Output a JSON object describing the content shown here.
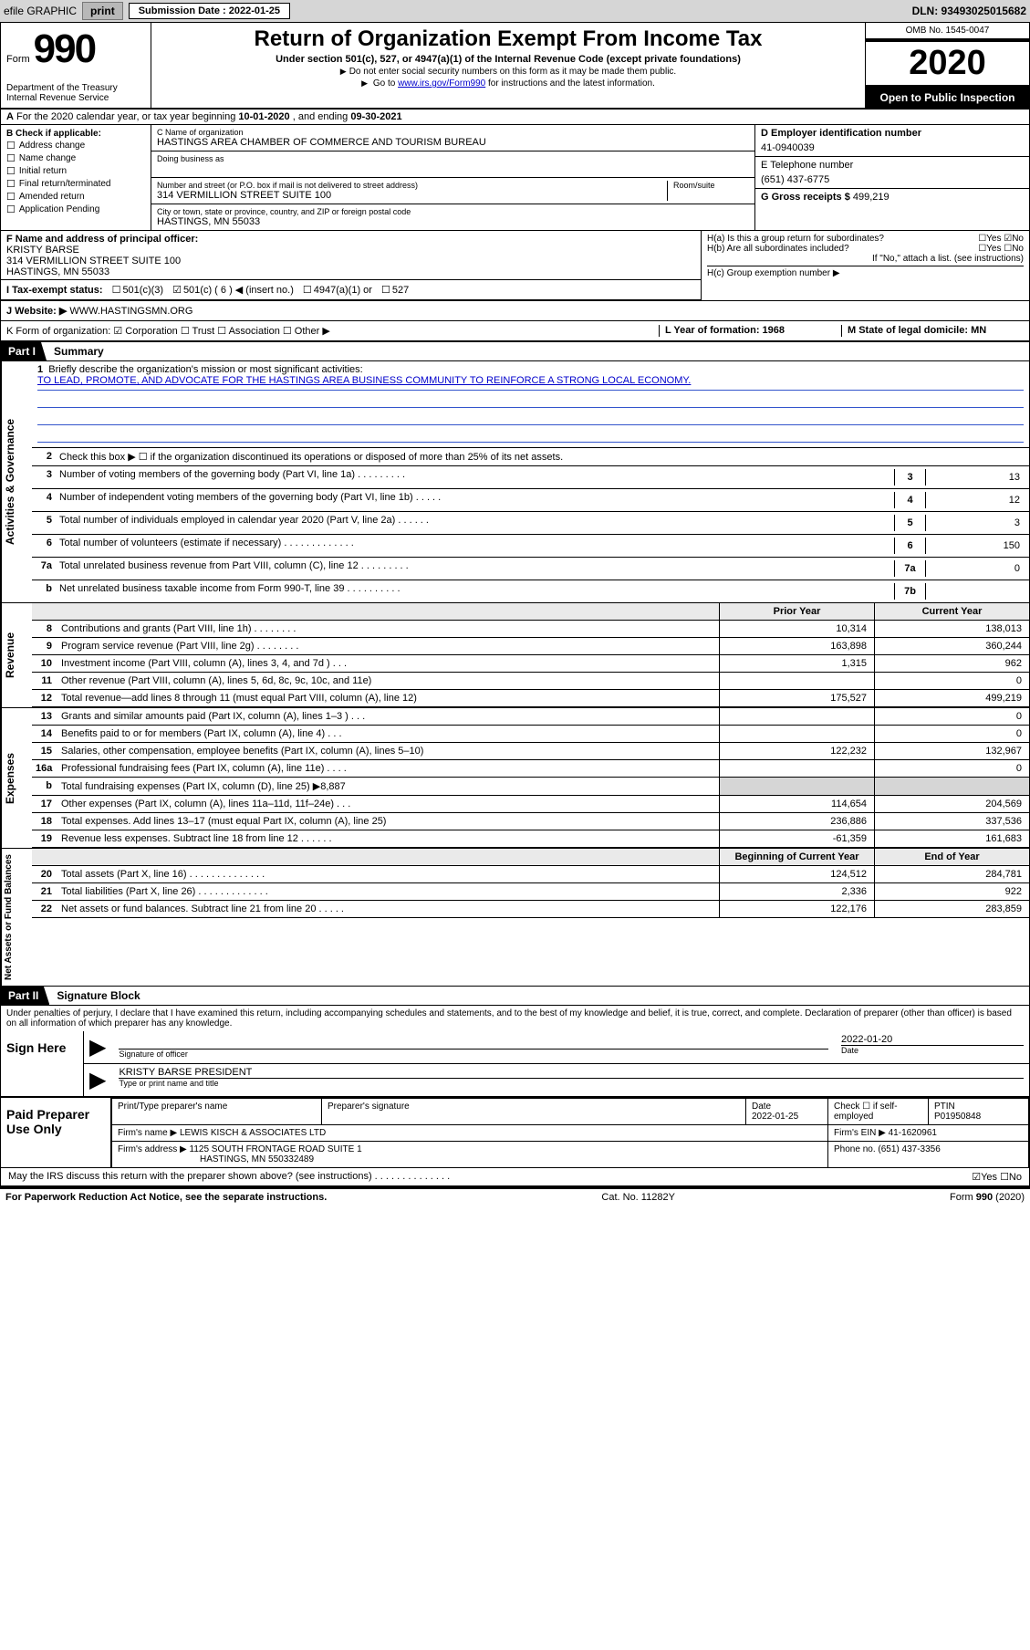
{
  "topbar": {
    "efile_text": "efile GRAPHIC",
    "print_btn": "print",
    "sub_label": "Submission Date : 2022-01-25",
    "dln": "DLN: 93493025015682"
  },
  "header": {
    "form_word": "Form",
    "form_num": "990",
    "dept": "Department of the Treasury\nInternal Revenue Service",
    "title": "Return of Organization Exempt From Income Tax",
    "subtitle": "Under section 501(c), 527, or 4947(a)(1) of the Internal Revenue Code (except private foundations)",
    "note1": "Do not enter social security numbers on this form as it may be made them public.",
    "note2_pre": "Go to ",
    "note2_link": "www.irs.gov/Form990",
    "note2_post": " for instructions and the latest information.",
    "omb": "OMB No. 1545-0047",
    "year": "2020",
    "open": "Open to Public Inspection"
  },
  "row_a": {
    "label": "A",
    "text": "For the 2020 calendar year, or tax year beginning ",
    "begin": "10-01-2020",
    "mid": " , and ending ",
    "end": "09-30-2021"
  },
  "col_b": {
    "label": "B Check if applicable:",
    "items": [
      "Address change",
      "Name change",
      "Initial return",
      "Final return/terminated",
      "Amended return",
      "Application Pending"
    ]
  },
  "col_c": {
    "name_lbl": "C Name of organization",
    "name": "HASTINGS AREA CHAMBER OF COMMERCE AND TOURISM BUREAU",
    "dba_lbl": "Doing business as",
    "addr_lbl": "Number and street (or P.O. box if mail is not delivered to street address)",
    "room_lbl": "Room/suite",
    "addr": "314 VERMILLION STREET SUITE 100",
    "city_lbl": "City or town, state or province, country, and ZIP or foreign postal code",
    "city": "HASTINGS, MN  55033"
  },
  "col_de": {
    "d_lbl": "D Employer identification number",
    "ein": "41-0940039",
    "e_lbl": "E Telephone number",
    "phone": "(651) 437-6775",
    "g_lbl": "G Gross receipts $",
    "g_val": "499,219"
  },
  "row_f": {
    "label": "F  Name and address of principal officer:",
    "name": "KRISTY BARSE",
    "addr1": "314 VERMILLION STREET SUITE 100",
    "addr2": "HASTINGS, MN  55033"
  },
  "row_h": {
    "ha": "H(a)  Is this a group return for subordinates?",
    "ha_yn": "☐Yes  ☑No",
    "hb": "H(b)  Are all subordinates included?",
    "hb_yn": "☐Yes  ☐No",
    "hb_note": "If \"No,\" attach a list. (see instructions)",
    "hc": "H(c)  Group exemption number ▶"
  },
  "row_i": {
    "label": "I    Tax-exempt status:",
    "c3": "501(c)(3)",
    "c6": "501(c) ( 6 ) ◀ (insert no.)",
    "a1": "4947(a)(1) or",
    "s527": "527"
  },
  "row_j": {
    "label": "J   Website: ▶",
    "val": "WWW.HASTINGSMN.ORG"
  },
  "row_k": {
    "k": "K Form of organization:  ☑ Corporation  ☐ Trust  ☐ Association  ☐ Other ▶",
    "l": "L Year of formation: 1968",
    "m": "M State of legal domicile: MN"
  },
  "part1": {
    "tag": "Part I",
    "title": "Summary"
  },
  "side": {
    "gov": "Activities & Governance",
    "rev": "Revenue",
    "exp": "Expenses",
    "net": "Net Assets or Fund Balances"
  },
  "summary": {
    "l1": "Briefly describe the organization's mission or most significant activities:",
    "mission": "TO LEAD, PROMOTE, AND ADVOCATE FOR THE HASTINGS AREA BUSINESS COMMUNITY TO REINFORCE A STRONG LOCAL ECONOMY.",
    "l2": "Check this box ▶ ☐  if the organization discontinued its operations or disposed of more than 25% of its net assets.",
    "rows": [
      {
        "n": "3",
        "t": "Number of voting members of the governing body (Part VI, line 1a)    .    .    .    .    .    .    .    .    .",
        "rn": "3",
        "v": "13"
      },
      {
        "n": "4",
        "t": "Number of independent voting members of the governing body (Part VI, line 1b)    .    .    .    .    .",
        "rn": "4",
        "v": "12"
      },
      {
        "n": "5",
        "t": "Total number of individuals employed in calendar year 2020 (Part V, line 2a)    .    .    .    .    .    .",
        "rn": "5",
        "v": "3"
      },
      {
        "n": "6",
        "t": "Total number of volunteers (estimate if necessary)    .    .    .    .    .    .    .    .    .    .    .    .    .",
        "rn": "6",
        "v": "150"
      },
      {
        "n": "7a",
        "t": "Total unrelated business revenue from Part VIII, column (C), line 12    .    .    .    .    .    .    .    .    .",
        "rn": "7a",
        "v": "0"
      },
      {
        "n": "b",
        "t": "Net unrelated business taxable income from Form 990-T, line 39    .    .    .    .    .    .    .    .    .    .",
        "rn": "7b",
        "v": ""
      }
    ]
  },
  "finhdr": {
    "prior": "Prior Year",
    "curr": "Current Year"
  },
  "revenue": [
    {
      "n": "8",
      "t": "Contributions and grants (Part VIII, line 1h)    .    .    .    .    .    .    .    .",
      "p": "10,314",
      "c": "138,013"
    },
    {
      "n": "9",
      "t": "Program service revenue (Part VIII, line 2g)    .    .    .    .    .    .    .    .",
      "p": "163,898",
      "c": "360,244"
    },
    {
      "n": "10",
      "t": "Investment income (Part VIII, column (A), lines 3, 4, and 7d )    .    .    .",
      "p": "1,315",
      "c": "962"
    },
    {
      "n": "11",
      "t": "Other revenue (Part VIII, column (A), lines 5, 6d, 8c, 9c, 10c, and 11e)",
      "p": "",
      "c": "0"
    },
    {
      "n": "12",
      "t": "Total revenue—add lines 8 through 11 (must equal Part VIII, column (A), line 12)",
      "p": "175,527",
      "c": "499,219"
    }
  ],
  "expenses": [
    {
      "n": "13",
      "t": "Grants and similar amounts paid (Part IX, column (A), lines 1–3 )    .    .    .",
      "p": "",
      "c": "0"
    },
    {
      "n": "14",
      "t": "Benefits paid to or for members (Part IX, column (A), line 4)    .    .    .",
      "p": "",
      "c": "0"
    },
    {
      "n": "15",
      "t": "Salaries, other compensation, employee benefits (Part IX, column (A), lines 5–10)",
      "p": "122,232",
      "c": "132,967"
    },
    {
      "n": "16a",
      "t": "Professional fundraising fees (Part IX, column (A), line 11e)    .    .    .    .",
      "p": "",
      "c": "0"
    },
    {
      "n": "b",
      "t": "Total fundraising expenses (Part IX, column (D), line 25) ▶8,887",
      "p": "GREY",
      "c": "GREY"
    },
    {
      "n": "17",
      "t": "Other expenses (Part IX, column (A), lines 11a–11d, 11f–24e)    .    .    .",
      "p": "114,654",
      "c": "204,569"
    },
    {
      "n": "18",
      "t": "Total expenses. Add lines 13–17 (must equal Part IX, column (A), line 25)",
      "p": "236,886",
      "c": "337,536"
    },
    {
      "n": "19",
      "t": "Revenue less expenses. Subtract line 18 from line 12    .    .    .    .    .    .",
      "p": "-61,359",
      "c": "161,683"
    }
  ],
  "nethdr": {
    "beg": "Beginning of Current Year",
    "end": "End of Year"
  },
  "netassets": [
    {
      "n": "20",
      "t": "Total assets (Part X, line 16)    .    .    .    .    .    .    .    .    .    .    .    .    .    .",
      "p": "124,512",
      "c": "284,781"
    },
    {
      "n": "21",
      "t": "Total liabilities (Part X, line 26)    .    .    .    .    .    .    .    .    .    .    .    .    .",
      "p": "2,336",
      "c": "922"
    },
    {
      "n": "22",
      "t": "Net assets or fund balances. Subtract line 21 from line 20    .    .    .    .    .",
      "p": "122,176",
      "c": "283,859"
    }
  ],
  "part2": {
    "tag": "Part II",
    "title": "Signature Block"
  },
  "declare": "Under penalties of perjury, I declare that I have examined this return, including accompanying schedules and statements, and to the best of my knowledge and belief, it is true, correct, and complete. Declaration of preparer (other than officer) is based on all information of which preparer has any knowledge.",
  "sign": {
    "here": "Sign Here",
    "sig_lbl": "Signature of officer",
    "date_lbl": "Date",
    "date": "2022-01-20",
    "name": "KRISTY BARSE  PRESIDENT",
    "name_lbl": "Type or print name and title"
  },
  "prep": {
    "label": "Paid Preparer Use Only",
    "h1": "Print/Type preparer's name",
    "h2": "Preparer's signature",
    "h3": "Date",
    "h3v": "2022-01-25",
    "h4": "Check ☐ if self-employed",
    "h5": "PTIN",
    "h5v": "P01950848",
    "firm_lbl": "Firm's name    ▶",
    "firm": "LEWIS KISCH & ASSOCIATES LTD",
    "ein_lbl": "Firm's EIN ▶",
    "ein": "41-1620961",
    "addr_lbl": "Firm's address ▶",
    "addr1": "1125 SOUTH FRONTAGE ROAD SUITE 1",
    "addr2": "HASTINGS, MN  550332489",
    "phone_lbl": "Phone no.",
    "phone": "(651) 437-3356"
  },
  "discuss": {
    "q": "May the IRS discuss this return with the preparer shown above? (see instructions)    .    .    .    .    .    .    .    .    .    .    .    .    .    .",
    "yn": "☑Yes  ☐No"
  },
  "footer": {
    "left": "For Paperwork Reduction Act Notice, see the separate instructions.",
    "mid": "Cat. No. 11282Y",
    "right": "Form 990 (2020)"
  }
}
